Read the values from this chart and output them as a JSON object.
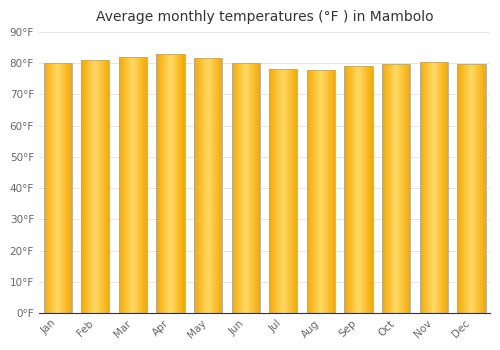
{
  "months": [
    "Jan",
    "Feb",
    "Mar",
    "Apr",
    "May",
    "Jun",
    "Jul",
    "Aug",
    "Sep",
    "Oct",
    "Nov",
    "Dec"
  ],
  "temperatures": [
    79.9,
    81.1,
    82.0,
    83.0,
    81.7,
    79.9,
    78.1,
    77.9,
    79.0,
    79.7,
    80.4,
    79.7
  ],
  "bar_color_center": "#FFD966",
  "bar_color_edge": "#F5A800",
  "bar_outline_color": "#AAAAAA",
  "background_color": "#FFFFFF",
  "plot_bg_color": "#FFFFFF",
  "title": "Average monthly temperatures (°F ) in Mambolo",
  "title_fontsize": 10,
  "ylabel_ticks": [
    "0°F",
    "10°F",
    "20°F",
    "30°F",
    "40°F",
    "50°F",
    "60°F",
    "70°F",
    "80°F",
    "90°F"
  ],
  "ytick_values": [
    0,
    10,
    20,
    30,
    40,
    50,
    60,
    70,
    80,
    90
  ],
  "ylim": [
    0,
    90
  ],
  "grid_color": "#E0E0E0",
  "tick_label_color": "#666666",
  "title_color": "#333333",
  "bar_width": 0.75
}
